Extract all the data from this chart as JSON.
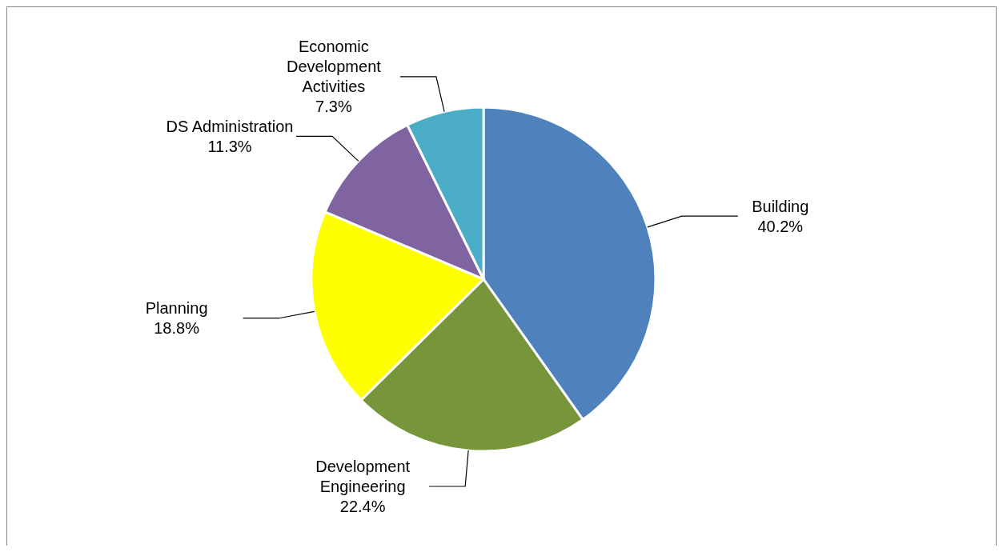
{
  "chart_data": {
    "type": "pie",
    "categories": [
      "Building",
      "Development Engineering",
      "Planning",
      "DS Administration",
      "Economic Development Activities"
    ],
    "values": [
      40.2,
      22.4,
      18.8,
      11.3,
      7.3
    ],
    "colors": [
      "#4f81bd",
      "#77963b",
      "#ffff00",
      "#8064a2",
      "#4bacc6"
    ],
    "value_labels": [
      "40.2%",
      "22.4%",
      "18.8%",
      "11.3%",
      "7.3%"
    ]
  }
}
